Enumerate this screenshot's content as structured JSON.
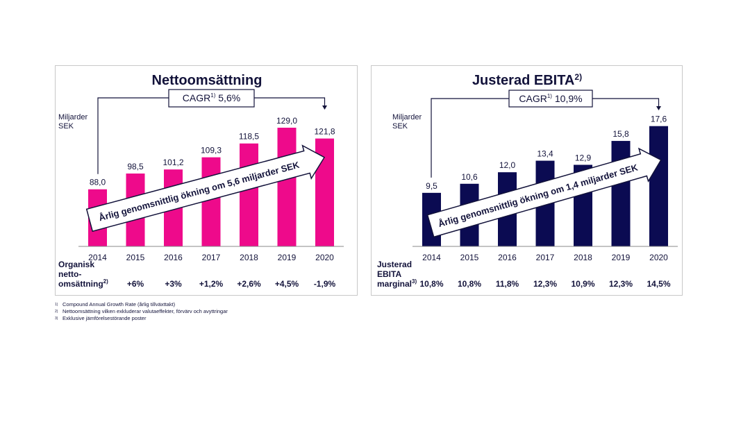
{
  "colors": {
    "left_bars": "#ee0a8b",
    "right_bars": "#0b0b52",
    "text": "#12123a",
    "axis": "#888888"
  },
  "footnotes": [
    {
      "mark": "1)",
      "text": "Compound Annual Growth Rate (årlig tillväxttakt)"
    },
    {
      "mark": "2)",
      "text": "Nettoomsättning vilken exkluderar valutaeffekter, förvärv och avyttringar"
    },
    {
      "mark": "3)",
      "text": "Exklusive jämförelsestörande poster"
    }
  ],
  "chart_data": [
    {
      "type": "bar",
      "title": "Nettoomsättning",
      "title_sup": "",
      "ylabel": "Miljarder SEK",
      "ylabel_lines": [
        "Miljarder",
        "SEK"
      ],
      "cagr_prefix": "CAGR",
      "cagr_sup": "1)",
      "cagr_value": "5,6%",
      "categories": [
        "2014",
        "2015",
        "2016",
        "2017",
        "2018",
        "2019",
        "2020"
      ],
      "values": [
        88.0,
        98.5,
        101.2,
        109.3,
        118.5,
        129.0,
        121.8
      ],
      "value_labels": [
        "88,0",
        "98,5",
        "101,2",
        "109,3",
        "118,5",
        "129,0",
        "121,8"
      ],
      "ylim": [
        50,
        135
      ],
      "bar_color": "#ee0a8b",
      "arrow_text": "Årlig genomsnittlig ökning om 5,6 miljarder SEK",
      "row_label_lines": [
        "Organisk",
        "netto-",
        "omsättning"
      ],
      "row_label_sup": "2)",
      "row_values": [
        "+6%",
        "+3%",
        "+1,2%",
        "+2,6%",
        "+4,5%",
        "-1,9%"
      ]
    },
    {
      "type": "bar",
      "title": "Justerad EBITA",
      "title_sup": "2)",
      "ylabel": "Miljarder SEK",
      "ylabel_lines": [
        "Miljarder",
        "SEK"
      ],
      "cagr_prefix": "CAGR",
      "cagr_sup": "1)",
      "cagr_value": "10,9%",
      "categories": [
        "2014",
        "2015",
        "2016",
        "2017",
        "2018",
        "2019",
        "2020"
      ],
      "values": [
        9.5,
        10.6,
        12.0,
        13.4,
        12.9,
        15.8,
        17.6
      ],
      "value_labels": [
        "9,5",
        "10,6",
        "12,0",
        "13,4",
        "12,9",
        "15,8",
        "17,6"
      ],
      "ylim": [
        3,
        18.5
      ],
      "bar_color": "#0b0b52",
      "arrow_text": "Årlig genomsnittlig ökning om 1,4 miljarder SEK",
      "row_label_lines": [
        "Justerad",
        "EBITA",
        "marginal"
      ],
      "row_label_sup": "3)",
      "row_values": [
        "10,8%",
        "10,8%",
        "11,8%",
        "12,3%",
        "10,9%",
        "12,3%",
        "14,5%"
      ]
    }
  ]
}
